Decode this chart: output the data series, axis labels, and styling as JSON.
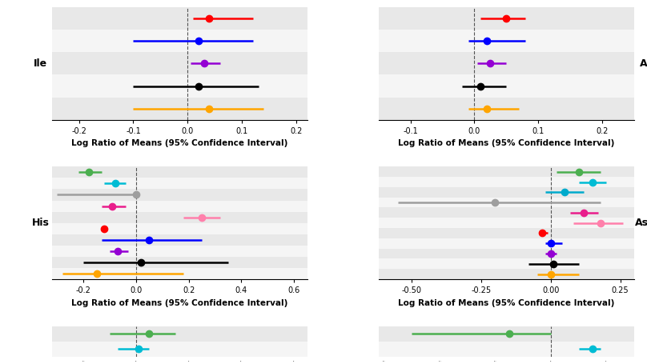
{
  "panels": [
    {
      "label": "Ile",
      "label_side": "left",
      "xlim": [
        -0.25,
        0.22
      ],
      "xticks": [
        -0.2,
        -0.1,
        0.0,
        0.1,
        0.2
      ],
      "xticklabels": [
        "-0.2",
        "-0.1",
        "0.0",
        "0.1",
        "0.2"
      ],
      "vline": 0.0,
      "series": [
        {
          "color": "#FF0000",
          "mean": 0.04,
          "lo": 0.01,
          "hi": 0.12
        },
        {
          "color": "#0000FF",
          "mean": 0.02,
          "lo": -0.1,
          "hi": 0.12
        },
        {
          "color": "#9400D3",
          "mean": 0.03,
          "lo": 0.005,
          "hi": 0.06
        },
        {
          "color": "#000000",
          "mean": 0.02,
          "lo": -0.1,
          "hi": 0.13
        },
        {
          "color": "#FFA500",
          "mean": 0.04,
          "lo": -0.1,
          "hi": 0.14
        }
      ]
    },
    {
      "label": "Al",
      "label_side": "right",
      "xlim": [
        -0.15,
        0.25
      ],
      "xticks": [
        -0.1,
        0.0,
        0.1,
        0.2
      ],
      "xticklabels": [
        "-0.1",
        "0.0",
        "0.1",
        "0.2"
      ],
      "vline": 0.0,
      "series": [
        {
          "color": "#FF0000",
          "mean": 0.05,
          "lo": 0.01,
          "hi": 0.08
        },
        {
          "color": "#0000FF",
          "mean": 0.02,
          "lo": -0.01,
          "hi": 0.08
        },
        {
          "color": "#9400D3",
          "mean": 0.025,
          "lo": 0.005,
          "hi": 0.05
        },
        {
          "color": "#000000",
          "mean": 0.01,
          "lo": -0.02,
          "hi": 0.05
        },
        {
          "color": "#FFA500",
          "mean": 0.02,
          "lo": -0.01,
          "hi": 0.07
        }
      ]
    },
    {
      "label": "His",
      "label_side": "left",
      "xlim": [
        -0.32,
        0.65
      ],
      "xticks": [
        -0.2,
        0.0,
        0.2,
        0.4,
        0.6
      ],
      "xticklabels": [
        "-0.2",
        "0.0",
        "0.2",
        "0.4",
        "0.6"
      ],
      "vline": 0.0,
      "series": [
        {
          "color": "#4CAF50",
          "mean": -0.18,
          "lo": -0.22,
          "hi": -0.13
        },
        {
          "color": "#00BCD4",
          "mean": -0.08,
          "lo": -0.12,
          "hi": -0.04
        },
        {
          "color": "#9E9E9E",
          "mean": 0.0,
          "lo": -0.3,
          "hi": 0.0
        },
        {
          "color": "#E91E8C",
          "mean": -0.09,
          "lo": -0.13,
          "hi": -0.04
        },
        {
          "color": "#FF80AB",
          "mean": 0.25,
          "lo": 0.18,
          "hi": 0.32
        },
        {
          "color": "#FF0000",
          "mean": -0.12,
          "lo": -0.12,
          "hi": -0.12
        },
        {
          "color": "#0000FF",
          "mean": 0.05,
          "lo": -0.13,
          "hi": 0.25
        },
        {
          "color": "#9400D3",
          "mean": -0.07,
          "lo": -0.1,
          "hi": -0.03
        },
        {
          "color": "#000000",
          "mean": 0.02,
          "lo": -0.2,
          "hi": 0.35
        },
        {
          "color": "#FFA500",
          "mean": -0.15,
          "lo": -0.28,
          "hi": 0.18
        }
      ]
    },
    {
      "label": "Asn",
      "label_side": "right",
      "xlim": [
        -0.62,
        0.3
      ],
      "xticks": [
        -0.5,
        -0.25,
        0.0,
        0.25
      ],
      "xticklabels": [
        "-0.50",
        "-0.25",
        "0.00",
        "0.25"
      ],
      "vline": 0.0,
      "series": [
        {
          "color": "#4CAF50",
          "mean": 0.1,
          "lo": 0.02,
          "hi": 0.18
        },
        {
          "color": "#00BCD4",
          "mean": 0.15,
          "lo": 0.1,
          "hi": 0.2
        },
        {
          "color": "#00AACC",
          "mean": 0.05,
          "lo": -0.02,
          "hi": 0.12
        },
        {
          "color": "#9E9E9E",
          "mean": -0.2,
          "lo": -0.55,
          "hi": 0.18
        },
        {
          "color": "#E91E8C",
          "mean": 0.12,
          "lo": 0.07,
          "hi": 0.17
        },
        {
          "color": "#FF80AB",
          "mean": 0.18,
          "lo": 0.08,
          "hi": 0.26
        },
        {
          "color": "#FF0000",
          "mean": -0.03,
          "lo": -0.04,
          "hi": -0.01
        },
        {
          "color": "#0000FF",
          "mean": 0.0,
          "lo": -0.02,
          "hi": 0.04
        },
        {
          "color": "#9400D3",
          "mean": 0.0,
          "lo": -0.02,
          "hi": 0.02
        },
        {
          "color": "#000000",
          "mean": 0.01,
          "lo": -0.08,
          "hi": 0.1
        },
        {
          "color": "#FFA500",
          "mean": 0.0,
          "lo": -0.05,
          "hi": 0.1
        }
      ]
    }
  ],
  "bottom_partial": [
    {
      "series": [
        {
          "color": "#4CAF50",
          "mean": 0.05,
          "lo": -0.08,
          "hi": 0.15
        },
        {
          "color": "#00BCD4",
          "mean": 0.05,
          "lo": -0.05,
          "hi": 0.1
        }
      ]
    },
    {
      "series": [
        {
          "color": "#4CAF50",
          "mean": -0.15,
          "lo": -0.5,
          "hi": 0.0
        },
        {
          "color": "#00BCD4",
          "mean": 0.15,
          "lo": 0.1,
          "hi": 0.2
        }
      ]
    }
  ],
  "xlabel": "Log Ratio of Means (95% Confidence Interval)",
  "bg_color": "#F5F5F5",
  "stripe_color": "#E8E8E8",
  "dot_size": 6,
  "linewidth": 1.8,
  "vline_style": "--",
  "vline_color": "#555555",
  "vline_lw": 0.8
}
